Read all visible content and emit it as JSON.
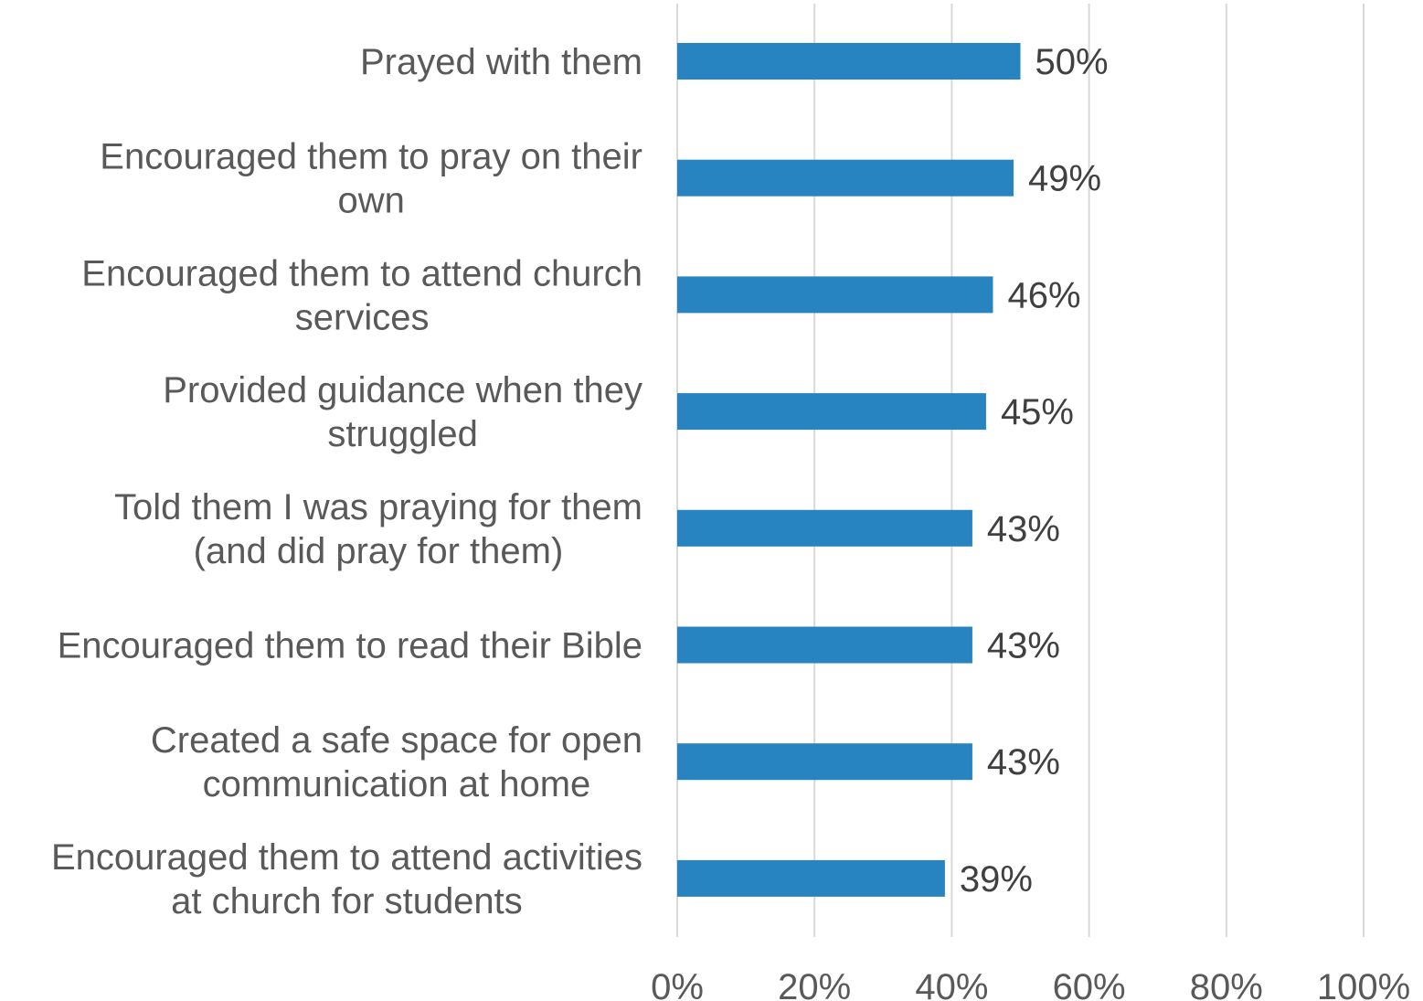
{
  "chart_data": {
    "type": "bar",
    "orientation": "horizontal",
    "categories": [
      [
        "Prayed with them"
      ],
      [
        "Encouraged them to pray on their",
        "own"
      ],
      [
        "Encouraged them to attend church",
        "services"
      ],
      [
        "Provided guidance when they",
        "struggled"
      ],
      [
        "Told them I was praying for them",
        "(and did pray for them)"
      ],
      [
        "Encouraged them to read their Bible"
      ],
      [
        "Created a safe space for open",
        "communication at home"
      ],
      [
        "Encouraged them to attend activities",
        "at church for students"
      ]
    ],
    "values": [
      50,
      49,
      46,
      45,
      43,
      43,
      43,
      39
    ],
    "data_labels": [
      "50%",
      "49%",
      "46%",
      "45%",
      "43%",
      "43%",
      "43%",
      "39%"
    ],
    "xlim": [
      0,
      100
    ],
    "x_ticks": [
      0,
      20,
      40,
      60,
      80,
      100
    ],
    "x_tick_labels": [
      "0%",
      "20%",
      "40%",
      "60%",
      "80%",
      "100%"
    ],
    "title": "",
    "xlabel": "",
    "ylabel": "",
    "grid": "vertical",
    "legend": "none",
    "colors": {
      "bar": "#2784C0",
      "grid": "#D9D9D9",
      "category_text": "#595959",
      "label_text": "#404040"
    }
  }
}
